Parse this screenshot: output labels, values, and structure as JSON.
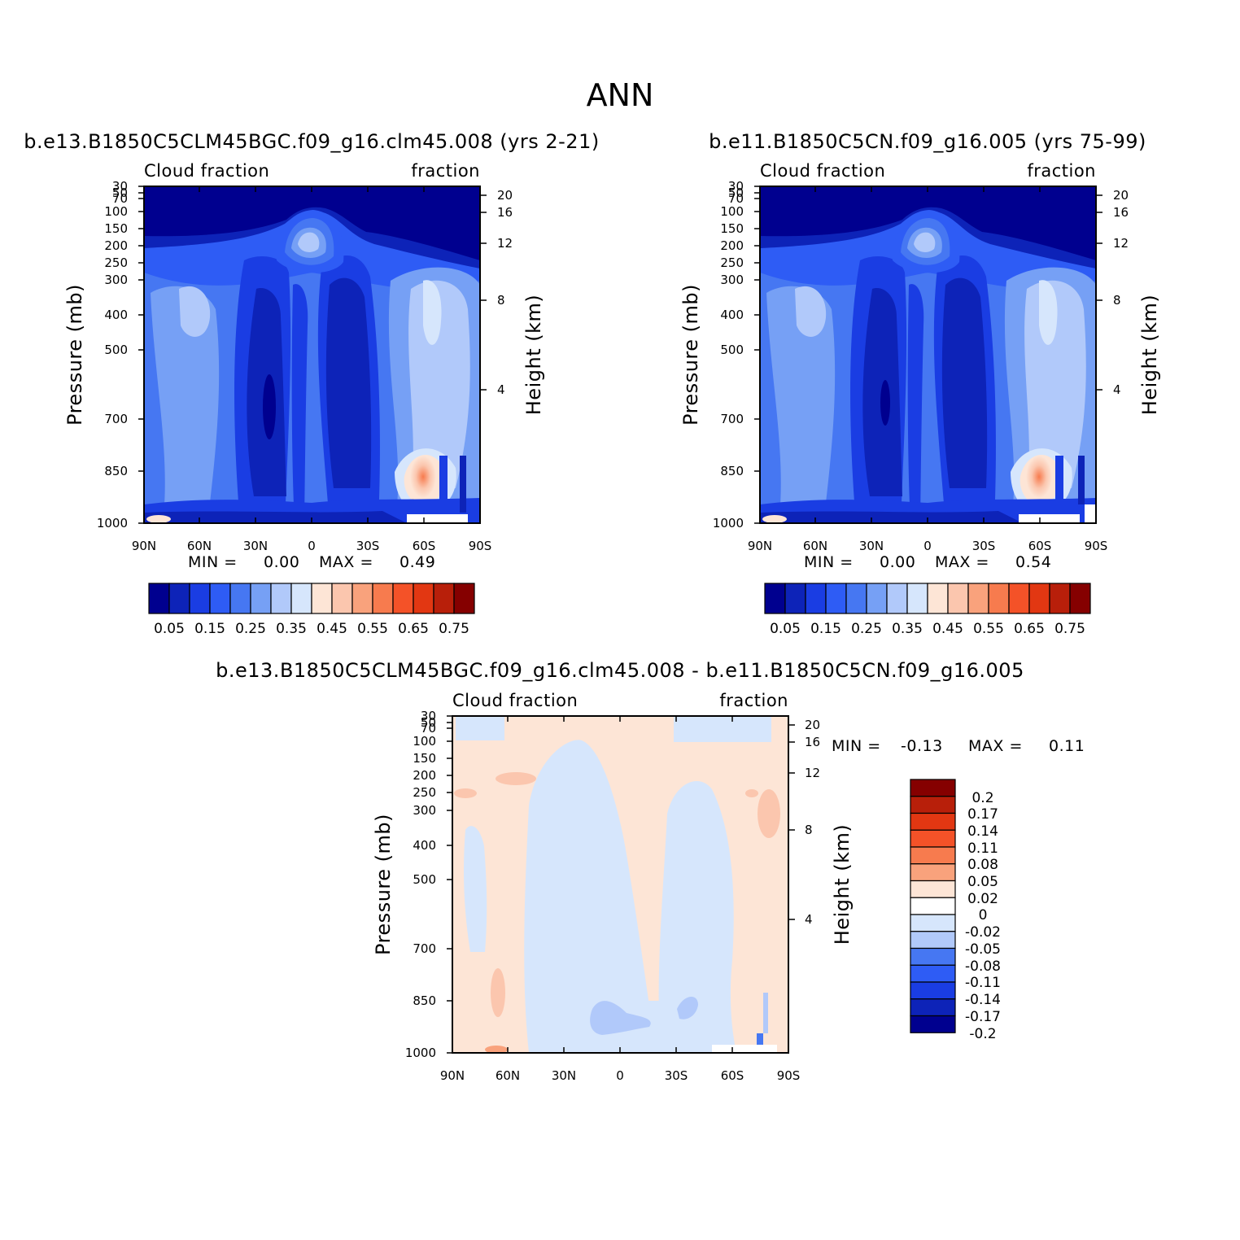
{
  "figure": {
    "title": "ANN"
  },
  "chart_data": [
    {
      "type": "heatmap",
      "panel": "left",
      "title": "b.e13.B1850C5CLM45BGC.f09_g16.clm45.008 (yrs 2-21)",
      "corner_left": "Cloud fraction",
      "corner_right": "fraction",
      "ylabel": "Pressure (mb)",
      "ylabel2": "Height (km)",
      "x_ticks": [
        "90N",
        "60N",
        "30N",
        "0",
        "30S",
        "60S",
        "90S"
      ],
      "pressure_ticks": [
        "30",
        "50",
        "70",
        "100",
        "150",
        "200",
        "250",
        "300",
        "400",
        "500",
        "700",
        "850",
        "1000"
      ],
      "height_ticks": [
        "20",
        "16",
        "12",
        "8",
        "4"
      ],
      "min_label": "MIN =",
      "min_value": "0.00",
      "max_label": "MAX =",
      "max_value": "0.49",
      "colorbar": {
        "labels": [
          "0.05",
          "0.15",
          "0.25",
          "0.35",
          "0.45",
          "0.55",
          "0.65",
          "0.75"
        ],
        "colors": [
          "#00008f",
          "#0d23b8",
          "#1a3de3",
          "#2e5cf5",
          "#4677f2",
          "#76a0f5",
          "#b1c9fa",
          "#d6e6fc",
          "#fde5d6",
          "#fbc6ae",
          "#f9a27c",
          "#f77b4e",
          "#f45228",
          "#e23712",
          "#b81f0a",
          "#850000"
        ]
      }
    },
    {
      "type": "heatmap",
      "panel": "right",
      "title": "b.e11.B1850C5CN.f09_g16.005 (yrs 75-99)",
      "corner_left": "Cloud fraction",
      "corner_right": "fraction",
      "ylabel": "Pressure (mb)",
      "ylabel2": "Height (km)",
      "x_ticks": [
        "90N",
        "60N",
        "30N",
        "0",
        "30S",
        "60S",
        "90S"
      ],
      "pressure_ticks": [
        "30",
        "50",
        "70",
        "100",
        "150",
        "200",
        "250",
        "300",
        "400",
        "500",
        "700",
        "850",
        "1000"
      ],
      "height_ticks": [
        "20",
        "16",
        "12",
        "8",
        "4"
      ],
      "min_label": "MIN =",
      "min_value": "0.00",
      "max_label": "MAX =",
      "max_value": "0.54",
      "colorbar": {
        "labels": [
          "0.05",
          "0.15",
          "0.25",
          "0.35",
          "0.45",
          "0.55",
          "0.65",
          "0.75"
        ],
        "colors": [
          "#00008f",
          "#0d23b8",
          "#1a3de3",
          "#2e5cf5",
          "#4677f2",
          "#76a0f5",
          "#b1c9fa",
          "#d6e6fc",
          "#fde5d6",
          "#fbc6ae",
          "#f9a27c",
          "#f77b4e",
          "#f45228",
          "#e23712",
          "#b81f0a",
          "#850000"
        ]
      }
    },
    {
      "type": "heatmap",
      "panel": "diff",
      "title": "b.e13.B1850C5CLM45BGC.f09_g16.clm45.008 - b.e11.B1850C5CN.f09_g16.005",
      "corner_left": "Cloud fraction",
      "corner_right": "fraction",
      "ylabel": "Pressure (mb)",
      "ylabel2": "Height (km)",
      "x_ticks": [
        "90N",
        "60N",
        "30N",
        "0",
        "30S",
        "60S",
        "90S"
      ],
      "pressure_ticks": [
        "30",
        "50",
        "70",
        "100",
        "150",
        "200",
        "250",
        "300",
        "400",
        "500",
        "700",
        "850",
        "1000"
      ],
      "height_ticks": [
        "20",
        "16",
        "12",
        "8",
        "4"
      ],
      "min_label": "MIN =",
      "min_value": "-0.13",
      "max_label": "MAX =",
      "max_value": "0.11",
      "colorbar": {
        "labels": [
          "0.2",
          "0.17",
          "0.14",
          "0.11",
          "0.08",
          "0.05",
          "0.02",
          "0",
          "-0.02",
          "-0.05",
          "-0.08",
          "-0.11",
          "-0.14",
          "-0.17",
          "-0.2"
        ],
        "colors": [
          "#850000",
          "#b81f0a",
          "#e23712",
          "#f45228",
          "#f77b4e",
          "#f9a27c",
          "#fde5d6",
          "#ffffff",
          "#d6e6fc",
          "#b1c9fa",
          "#4677f2",
          "#2e5cf5",
          "#1a3de3",
          "#0d23b8",
          "#00008f"
        ]
      }
    }
  ]
}
